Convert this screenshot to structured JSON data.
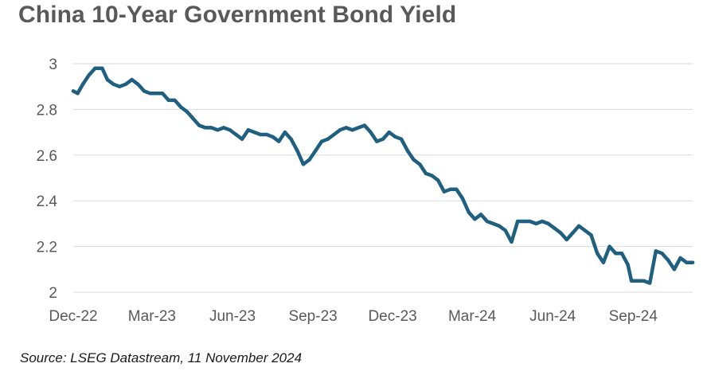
{
  "chart_data": {
    "type": "line",
    "title": "China 10-Year Government Bond Yield",
    "source": "Source: LSEG Datastream, 11 November 2024",
    "xlabel": "",
    "ylabel": "",
    "ylim": [
      2,
      3
    ],
    "yticks": [
      "3",
      "2.8",
      "2.6",
      "2.4",
      "2.2",
      "2"
    ],
    "ytick_values": [
      3,
      2.8,
      2.6,
      2.4,
      2.2,
      2
    ],
    "xlim": [
      "2022-12-01",
      "2024-11-08"
    ],
    "xticks": [
      "Dec-22",
      "Mar-23",
      "Jun-23",
      "Sep-23",
      "Dec-23",
      "Mar-24",
      "Jun-24",
      "Sep-24"
    ],
    "xtick_dates": [
      "2022-12-01",
      "2023-03-01",
      "2023-06-01",
      "2023-09-01",
      "2023-12-01",
      "2024-03-01",
      "2024-06-01",
      "2024-09-01"
    ],
    "grid": "horizontal",
    "line_color": "#1f5f7f",
    "grid_color": "#d9d9d9",
    "series": [
      {
        "points": [
          [
            "2022-12-01",
            2.88
          ],
          [
            "2022-12-06",
            2.87
          ],
          [
            "2022-12-12",
            2.91
          ],
          [
            "2022-12-19",
            2.95
          ],
          [
            "2022-12-26",
            2.98
          ],
          [
            "2023-01-03",
            2.98
          ],
          [
            "2023-01-09",
            2.93
          ],
          [
            "2023-01-16",
            2.91
          ],
          [
            "2023-01-23",
            2.9
          ],
          [
            "2023-01-30",
            2.91
          ],
          [
            "2023-02-06",
            2.93
          ],
          [
            "2023-02-13",
            2.91
          ],
          [
            "2023-02-20",
            2.88
          ],
          [
            "2023-02-27",
            2.87
          ],
          [
            "2023-03-06",
            2.87
          ],
          [
            "2023-03-13",
            2.87
          ],
          [
            "2023-03-20",
            2.84
          ],
          [
            "2023-03-27",
            2.84
          ],
          [
            "2023-04-03",
            2.81
          ],
          [
            "2023-04-10",
            2.79
          ],
          [
            "2023-04-17",
            2.76
          ],
          [
            "2023-04-24",
            2.73
          ],
          [
            "2023-05-01",
            2.72
          ],
          [
            "2023-05-08",
            2.72
          ],
          [
            "2023-05-15",
            2.71
          ],
          [
            "2023-05-22",
            2.72
          ],
          [
            "2023-05-29",
            2.71
          ],
          [
            "2023-06-05",
            2.69
          ],
          [
            "2023-06-12",
            2.67
          ],
          [
            "2023-06-19",
            2.71
          ],
          [
            "2023-06-26",
            2.7
          ],
          [
            "2023-07-03",
            2.69
          ],
          [
            "2023-07-10",
            2.69
          ],
          [
            "2023-07-17",
            2.68
          ],
          [
            "2023-07-24",
            2.66
          ],
          [
            "2023-07-31",
            2.7
          ],
          [
            "2023-08-07",
            2.67
          ],
          [
            "2023-08-14",
            2.62
          ],
          [
            "2023-08-21",
            2.56
          ],
          [
            "2023-08-28",
            2.58
          ],
          [
            "2023-09-04",
            2.62
          ],
          [
            "2023-09-11",
            2.66
          ],
          [
            "2023-09-18",
            2.67
          ],
          [
            "2023-09-25",
            2.69
          ],
          [
            "2023-10-02",
            2.71
          ],
          [
            "2023-10-09",
            2.72
          ],
          [
            "2023-10-16",
            2.71
          ],
          [
            "2023-10-23",
            2.72
          ],
          [
            "2023-10-30",
            2.73
          ],
          [
            "2023-11-06",
            2.7
          ],
          [
            "2023-11-13",
            2.66
          ],
          [
            "2023-11-20",
            2.67
          ],
          [
            "2023-11-27",
            2.7
          ],
          [
            "2023-12-04",
            2.68
          ],
          [
            "2023-12-11",
            2.67
          ],
          [
            "2023-12-18",
            2.62
          ],
          [
            "2023-12-25",
            2.58
          ],
          [
            "2024-01-01",
            2.56
          ],
          [
            "2024-01-08",
            2.52
          ],
          [
            "2024-01-15",
            2.51
          ],
          [
            "2024-01-22",
            2.49
          ],
          [
            "2024-01-29",
            2.44
          ],
          [
            "2024-02-05",
            2.45
          ],
          [
            "2024-02-12",
            2.45
          ],
          [
            "2024-02-19",
            2.41
          ],
          [
            "2024-02-26",
            2.35
          ],
          [
            "2024-03-04",
            2.32
          ],
          [
            "2024-03-11",
            2.34
          ],
          [
            "2024-03-18",
            2.31
          ],
          [
            "2024-03-25",
            2.3
          ],
          [
            "2024-04-01",
            2.29
          ],
          [
            "2024-04-08",
            2.27
          ],
          [
            "2024-04-15",
            2.22
          ],
          [
            "2024-04-22",
            2.31
          ],
          [
            "2024-04-29",
            2.31
          ],
          [
            "2024-05-06",
            2.31
          ],
          [
            "2024-05-13",
            2.3
          ],
          [
            "2024-05-20",
            2.31
          ],
          [
            "2024-05-27",
            2.3
          ],
          [
            "2024-06-03",
            2.28
          ],
          [
            "2024-06-10",
            2.26
          ],
          [
            "2024-06-17",
            2.23
          ],
          [
            "2024-06-24",
            2.26
          ],
          [
            "2024-07-01",
            2.29
          ],
          [
            "2024-07-08",
            2.27
          ],
          [
            "2024-07-15",
            2.25
          ],
          [
            "2024-07-22",
            2.17
          ],
          [
            "2024-07-29",
            2.13
          ],
          [
            "2024-08-05",
            2.2
          ],
          [
            "2024-08-12",
            2.17
          ],
          [
            "2024-08-19",
            2.17
          ],
          [
            "2024-08-26",
            2.12
          ],
          [
            "2024-08-30",
            2.05
          ],
          [
            "2024-09-06",
            2.05
          ],
          [
            "2024-09-13",
            2.05
          ],
          [
            "2024-09-20",
            2.04
          ],
          [
            "2024-09-27",
            2.18
          ],
          [
            "2024-10-04",
            2.17
          ],
          [
            "2024-10-11",
            2.14
          ],
          [
            "2024-10-18",
            2.1
          ],
          [
            "2024-10-25",
            2.15
          ],
          [
            "2024-11-01",
            2.13
          ],
          [
            "2024-11-08",
            2.13
          ]
        ]
      }
    ]
  }
}
